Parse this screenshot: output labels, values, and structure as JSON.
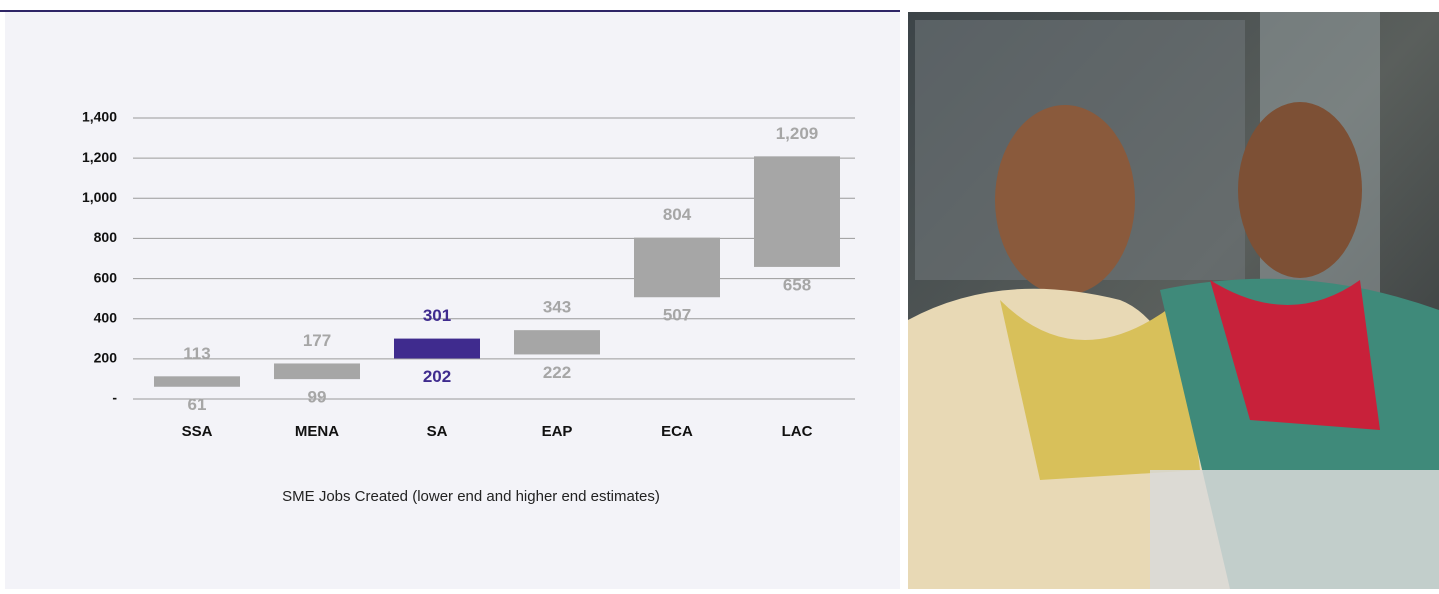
{
  "chart_data": {
    "type": "range",
    "categories": [
      "SSA",
      "MENA",
      "SA",
      "EAP",
      "ECA",
      "LAC"
    ],
    "series": [
      {
        "values": [
          61,
          99,
          202,
          222,
          507,
          658
        ]
      },
      {
        "values": [
          113,
          177,
          301,
          343,
          804,
          1209
        ],
        "value_labels": [
          "113",
          "177",
          "301",
          "343",
          "804",
          "1,209"
        ]
      }
    ],
    "colors": [
      "#a6a6a6",
      "#a6a6a6",
      "#3f2b8e",
      "#a6a6a6",
      "#a6a6a6",
      "#a6a6a6"
    ],
    "ylim": [
      0,
      1400
    ],
    "yticks": [
      {
        "value": 0,
        "label": "-"
      },
      200,
      400,
      600,
      800,
      {
        "value": 1000,
        "label": "1,000"
      },
      {
        "value": 1200,
        "label": "1,200"
      },
      {
        "value": 1400,
        "label": "1,400"
      }
    ],
    "grid": true,
    "xlabel": "SME Jobs Created (lower end and higher end estimates)"
  }
}
